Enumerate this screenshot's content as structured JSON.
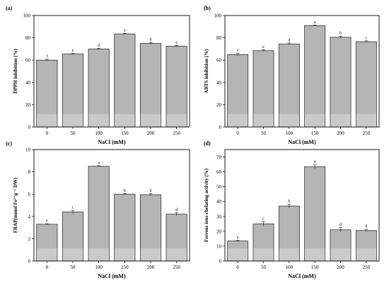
{
  "chart_data": [
    {
      "panel": "(a)",
      "type": "bar",
      "categories": [
        "0",
        "50",
        "100",
        "150",
        "200",
        "250"
      ],
      "values": [
        60,
        65.5,
        70,
        83.5,
        75,
        72.5
      ],
      "errors": [
        0.8,
        0.6,
        0.7,
        0.6,
        0.8,
        0.6
      ],
      "letters": [
        "f",
        "e",
        "d",
        "a",
        "b",
        "c"
      ],
      "xlabel": "NaCl (mM)",
      "ylabel": "DPPH inhibition (%)",
      "ylim": [
        0,
        100
      ],
      "yticks": [
        0,
        20,
        40,
        60,
        80,
        100
      ],
      "bar_color": "#b5b5b5"
    },
    {
      "panel": "(b)",
      "type": "bar",
      "categories": [
        "0",
        "50",
        "100",
        "150",
        "200",
        "250"
      ],
      "values": [
        65,
        68.5,
        74.5,
        91,
        80.5,
        76.5
      ],
      "errors": [
        1.2,
        0.8,
        0.9,
        0.5,
        1.0,
        0.8
      ],
      "letters": [
        "f",
        "e",
        "d",
        "a",
        "b",
        "c"
      ],
      "xlabel": "NaCl (mM)",
      "ylabel": "ABTS inhibition (%)",
      "ylim": [
        0,
        100
      ],
      "yticks": [
        0,
        20,
        40,
        60,
        80,
        100
      ],
      "bar_color": "#b5b5b5"
    },
    {
      "panel": "(c)",
      "type": "bar",
      "categories": [
        "0",
        "50",
        "100",
        "150",
        "200",
        "250"
      ],
      "values": [
        3.3,
        4.4,
        8.5,
        6.0,
        5.95,
        4.2
      ],
      "errors": [
        0.05,
        0.15,
        0.05,
        0.05,
        0.1,
        0.15
      ],
      "letters": [
        "e",
        "c",
        "a",
        "b",
        "b",
        "d"
      ],
      "xlabel": "NaCl (mM)",
      "ylabel": "FRAP(mmol Fe²⁺g⁻¹ DW)",
      "ylim": [
        0,
        10
      ],
      "yticks": [
        0,
        2,
        4,
        6,
        8,
        10
      ],
      "bar_color": "#b5b5b5"
    },
    {
      "panel": "(d)",
      "type": "bar",
      "categories": [
        "0",
        "50",
        "100",
        "150",
        "200",
        "250"
      ],
      "values": [
        13.5,
        25,
        37,
        63.5,
        21,
        20.5
      ],
      "errors": [
        0.5,
        1.5,
        1.2,
        1.5,
        1.5,
        0.8
      ],
      "letters": [
        "e",
        "c",
        "b",
        "a",
        "d",
        "d"
      ],
      "xlabel": "NaCl (mM)",
      "ylabel": "Ferrous ions-chelating activity (%)",
      "ylim": [
        0,
        75
      ],
      "yticks": [
        0,
        10,
        20,
        30,
        40,
        50,
        60,
        70
      ],
      "bar_color": "#b5b5b5"
    }
  ]
}
